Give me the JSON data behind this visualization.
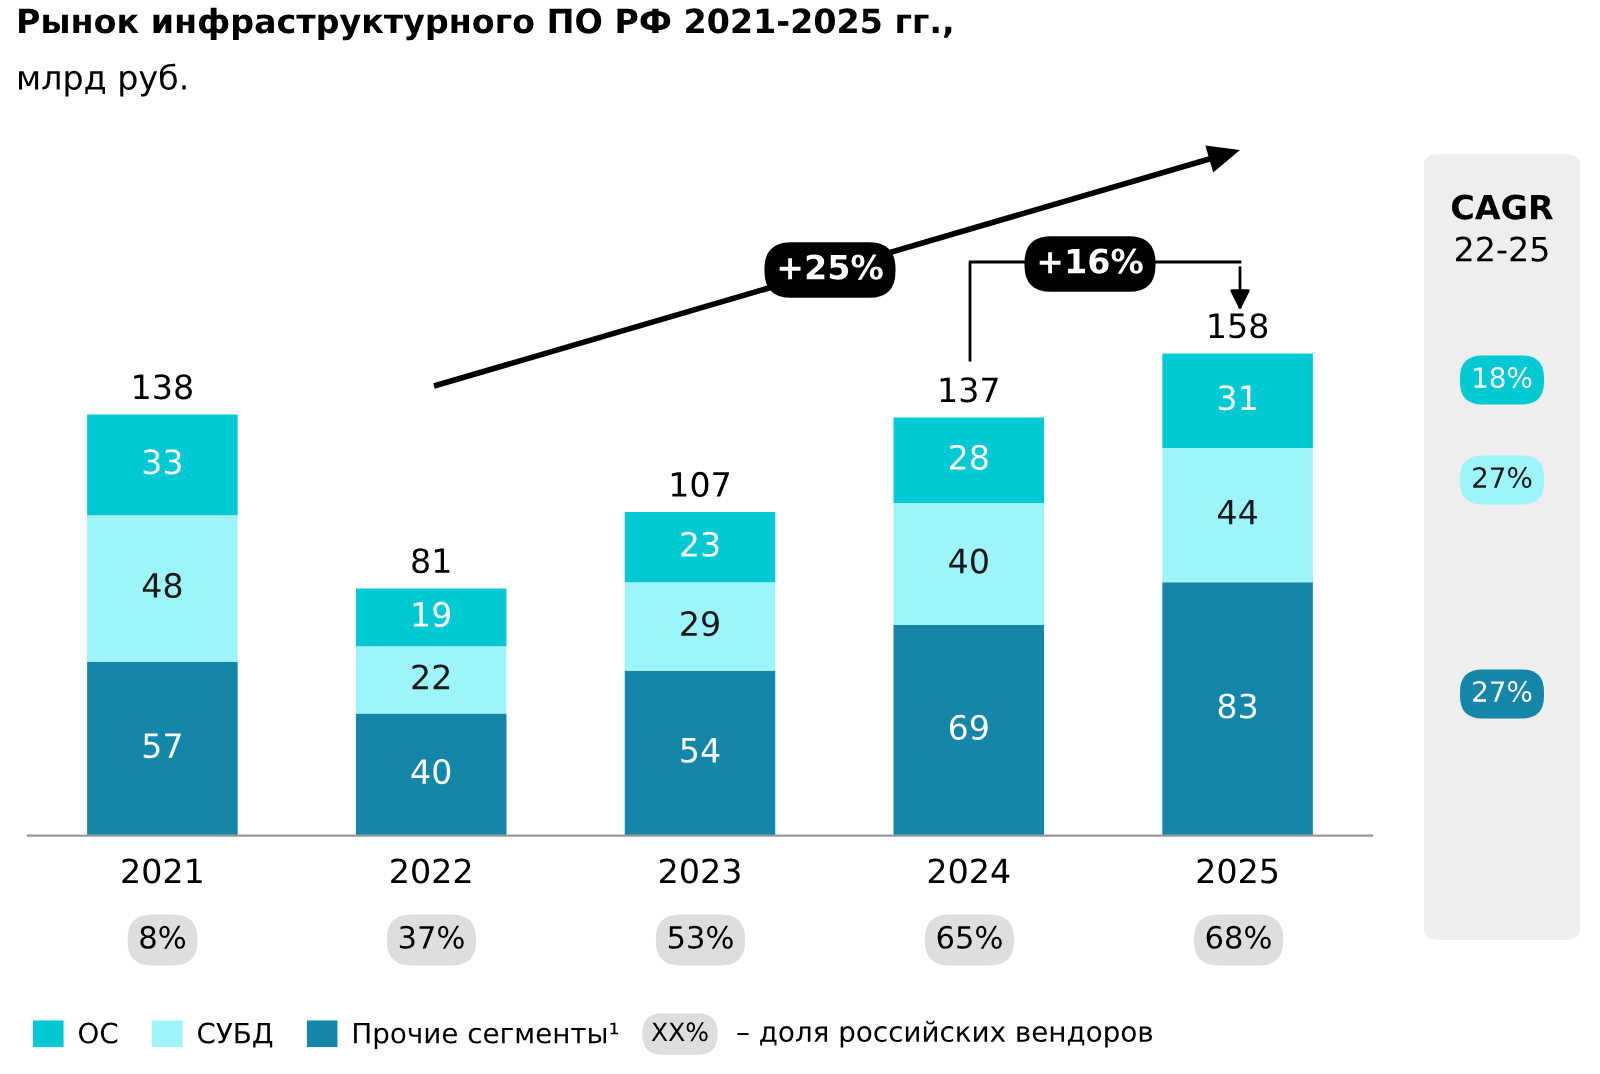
{
  "chart_data": {
    "type": "bar",
    "stacked": true,
    "title": "Рынок инфраструктурного ПО РФ 2021-2025 гг.,",
    "subtitle": "млрд руб.",
    "categories": [
      "2021",
      "2022",
      "2023",
      "2024",
      "2025"
    ],
    "series": [
      {
        "name": "Прочие сегменты¹",
        "color": "#1386a9",
        "values": [
          57,
          40,
          54,
          69,
          83
        ]
      },
      {
        "name": "СУБД",
        "color": "#9df5fb",
        "values": [
          48,
          22,
          29,
          40,
          44
        ]
      },
      {
        "name": "ОС",
        "color": "#00c9d3",
        "values": [
          33,
          19,
          23,
          28,
          31
        ]
      }
    ],
    "totals": [
      "138",
      "81",
      "107",
      "137",
      "158"
    ],
    "data_labels": true,
    "legend": "bottom",
    "annotations": [
      "+25%",
      "+16%",
      "CAGR",
      "22-25",
      "18%",
      "27%",
      "27%",
      "8%",
      "37%",
      "53%",
      "65%",
      "68%",
      "XX%",
      "– доля российских вендоров"
    ]
  }
}
